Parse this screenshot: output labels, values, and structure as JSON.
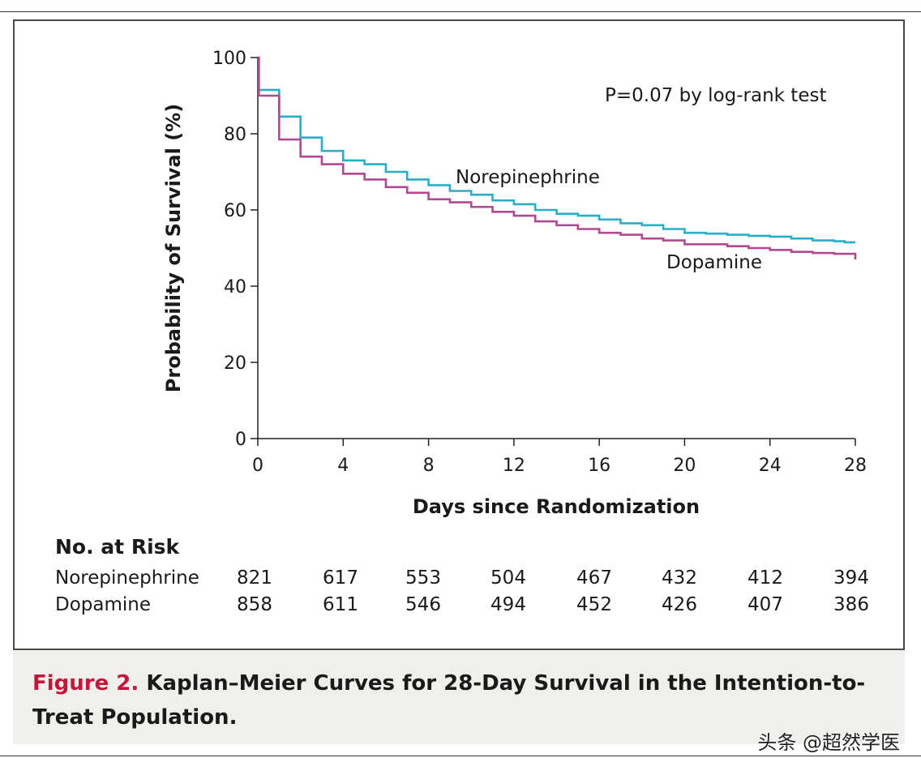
{
  "chart_data": {
    "type": "line",
    "title": "",
    "xlabel": "Days since Randomization",
    "ylabel": "Probability of Survival (%)",
    "xlim": [
      0,
      28
    ],
    "ylim": [
      0,
      100
    ],
    "xticks": [
      0,
      4,
      8,
      12,
      16,
      20,
      24,
      28
    ],
    "yticks": [
      0,
      20,
      40,
      60,
      80,
      100
    ],
    "grid": false,
    "annotation": "P=0.07 by log-rank test",
    "series": [
      {
        "name": "Norepinephrine",
        "color": "#2aaec8",
        "step": true,
        "x": [
          0,
          0.05,
          1,
          2,
          3,
          4,
          5,
          6,
          7,
          8,
          9,
          10,
          11,
          12,
          13,
          14,
          15,
          16,
          17,
          18,
          19,
          20,
          21,
          22,
          23,
          24,
          25,
          26,
          27,
          27.5,
          28
        ],
        "y": [
          100,
          91.5,
          84.5,
          79,
          75.5,
          73,
          72,
          70,
          68,
          66.5,
          65,
          64,
          62.5,
          61.5,
          60,
          59,
          58.5,
          57.5,
          56.5,
          56,
          55,
          54,
          53.8,
          53.5,
          53.2,
          53,
          52.5,
          52,
          51.8,
          51.5,
          51.5
        ]
      },
      {
        "name": "Dopamine",
        "color": "#b0498f",
        "step": true,
        "x": [
          0,
          0.05,
          1,
          2,
          3,
          4,
          5,
          6,
          7,
          8,
          9,
          10,
          11,
          12,
          13,
          14,
          15,
          16,
          17,
          18,
          19,
          20,
          21,
          22,
          23,
          24,
          25,
          26,
          27,
          28
        ],
        "y": [
          100,
          90,
          78.5,
          74,
          72,
          69.5,
          68,
          66,
          64.5,
          62.8,
          62,
          60.8,
          59.5,
          58.5,
          57,
          56,
          55,
          54,
          53.5,
          52.5,
          52,
          51,
          51,
          50.5,
          50,
          49.5,
          49,
          48.7,
          48.5,
          47
        ]
      }
    ]
  },
  "risk_table": {
    "title": "No. at Risk",
    "days": [
      0,
      4,
      8,
      12,
      16,
      20,
      24,
      28
    ],
    "rows": [
      {
        "label": "Norepinephrine",
        "values": [
          821,
          617,
          553,
          504,
          467,
          432,
          412,
          394
        ]
      },
      {
        "label": "Dopamine",
        "values": [
          858,
          611,
          546,
          494,
          452,
          426,
          407,
          386
        ]
      }
    ]
  },
  "caption": {
    "label": "Figure 2.",
    "text": "Kaplan–Meier Curves for 28-Day Survival in the Intention-to-Treat Population."
  },
  "watermark": "头条 @超然学医"
}
